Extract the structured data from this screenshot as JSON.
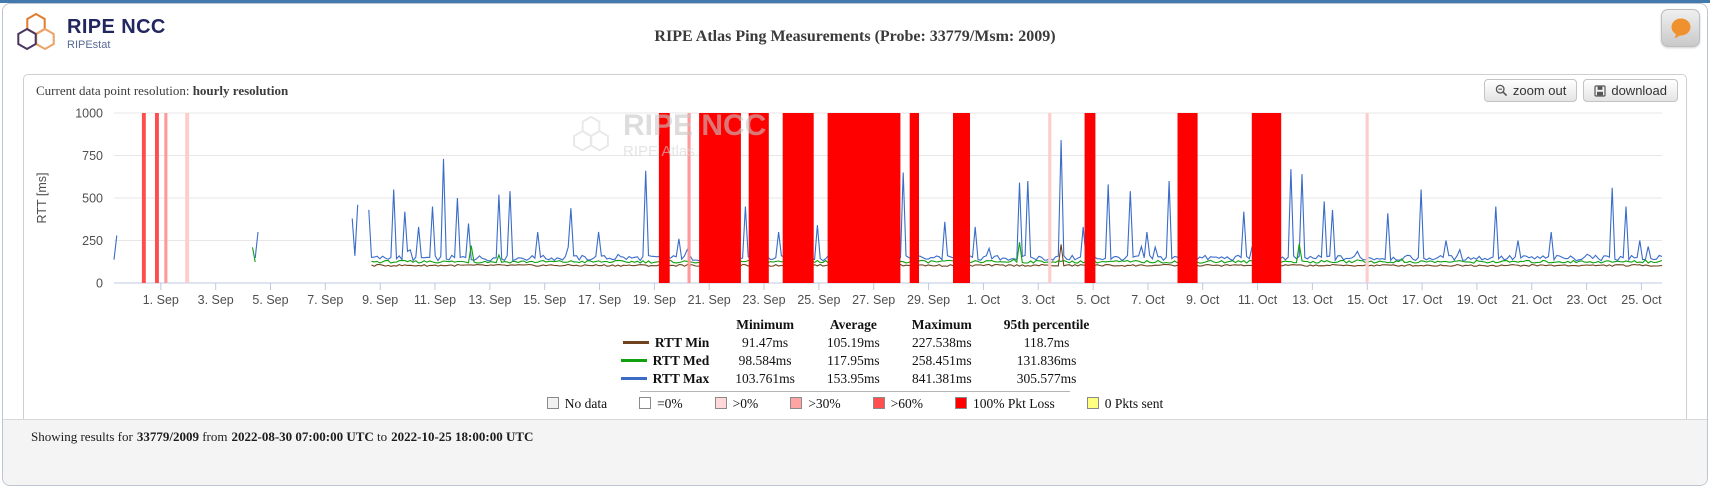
{
  "header": {
    "logo_title": "RIPE NCC",
    "logo_subtitle": "RIPEstat",
    "title": "RIPE Atlas Ping Measurements (Probe: 33779/Msm: 2009)"
  },
  "toolbar": {
    "resolution_label": "Current data point resolution:",
    "resolution_value": "hourly resolution",
    "zoom_out_label": "zoom out",
    "download_label": "download"
  },
  "chart_data": {
    "type": "line",
    "title": "RIPE Atlas Ping Measurements (Probe: 33779/Msm: 2009)",
    "ylabel": "RTT [ms]",
    "ylim": [
      0,
      1000
    ],
    "yticks": [
      0,
      250,
      500,
      750,
      1000
    ],
    "x_start": "2022-08-30 07:00:00 UTC",
    "x_end": "2022-10-25 18:00:00 UTC",
    "x_tick_labels": [
      "1. Sep",
      "3. Sep",
      "5. Sep",
      "7. Sep",
      "9. Sep",
      "11. Sep",
      "13. Sep",
      "15. Sep",
      "17. Sep",
      "19. Sep",
      "21. Sep",
      "23. Sep",
      "25. Sep",
      "27. Sep",
      "29. Sep",
      "1. Oct",
      "3. Oct",
      "5. Oct",
      "7. Oct",
      "9. Oct",
      "11. Oct",
      "13. Oct",
      "15. Oct",
      "17. Oct",
      "19. Oct",
      "21. Oct",
      "23. Oct",
      "25. Oct"
    ],
    "watermark_line1": "RIPE NCC",
    "watermark_line2": "RIPE Atlas",
    "sparse_until": 0.165,
    "series": [
      {
        "name": "RTT Max",
        "color": "#3a6cc8",
        "base": 131,
        "jitter": 32,
        "burst": [
          0.06,
          75
        ],
        "spikes": [
          [
            0.002,
            280
          ],
          [
            0.022,
            300
          ],
          [
            0.093,
            300
          ],
          [
            0.153,
            380
          ],
          [
            0.158,
            460
          ],
          [
            0.164,
            430
          ],
          [
            0.18,
            550
          ],
          [
            0.188,
            420
          ],
          [
            0.197,
            330
          ],
          [
            0.206,
            450
          ],
          [
            0.213,
            730
          ],
          [
            0.222,
            500
          ],
          [
            0.229,
            350
          ],
          [
            0.249,
            520
          ],
          [
            0.256,
            540
          ],
          [
            0.274,
            300
          ],
          [
            0.296,
            440
          ],
          [
            0.313,
            300
          ],
          [
            0.343,
            660
          ],
          [
            0.365,
            260
          ],
          [
            0.408,
            450
          ],
          [
            0.43,
            300
          ],
          [
            0.455,
            340
          ],
          [
            0.51,
            650
          ],
          [
            0.536,
            360
          ],
          [
            0.556,
            330
          ],
          [
            0.585,
            590
          ],
          [
            0.59,
            600
          ],
          [
            0.612,
            840
          ],
          [
            0.626,
            330
          ],
          [
            0.643,
            580
          ],
          [
            0.657,
            540
          ],
          [
            0.667,
            300
          ],
          [
            0.681,
            600
          ],
          [
            0.729,
            420
          ],
          [
            0.761,
            670
          ],
          [
            0.767,
            640
          ],
          [
            0.781,
            480
          ],
          [
            0.787,
            430
          ],
          [
            0.823,
            410
          ],
          [
            0.844,
            550
          ],
          [
            0.861,
            250
          ],
          [
            0.893,
            450
          ],
          [
            0.907,
            250
          ],
          [
            0.929,
            300
          ],
          [
            0.967,
            560
          ],
          [
            0.977,
            450
          ],
          [
            0.985,
            250
          ]
        ]
      },
      {
        "name": "RTT Med",
        "color": "#10a010",
        "base": 117,
        "jitter": 16,
        "burst": [
          0.03,
          35
        ],
        "spikes": [
          [
            0.09,
            210
          ],
          [
            0.23,
            220
          ],
          [
            0.585,
            240
          ],
          [
            0.765,
            230
          ]
        ]
      },
      {
        "name": "RTT Min",
        "color": "#70431f",
        "base": 98,
        "jitter": 11,
        "burst": null,
        "spikes": [
          [
            0.612,
            227
          ]
        ]
      }
    ],
    "band_colors": {
      "full": "#fe0000",
      "red60": "#ff4d4d",
      "red30": "#ff9999",
      "red0": "#ffcccc"
    },
    "loss_bands": [
      {
        "f0": 0.018,
        "f1": 0.0205,
        "type": "red60"
      },
      {
        "f0": 0.0265,
        "f1": 0.029,
        "type": "red60"
      },
      {
        "f0": 0.0325,
        "f1": 0.0345,
        "type": "red30"
      },
      {
        "f0": 0.046,
        "f1": 0.0485,
        "type": "red0"
      },
      {
        "f0": 0.352,
        "f1": 0.359,
        "type": "full"
      },
      {
        "f0": 0.3705,
        "f1": 0.3725,
        "type": "red30"
      },
      {
        "f0": 0.378,
        "f1": 0.405,
        "type": "full"
      },
      {
        "f0": 0.41,
        "f1": 0.423,
        "type": "full"
      },
      {
        "f0": 0.432,
        "f1": 0.452,
        "type": "full"
      },
      {
        "f0": 0.461,
        "f1": 0.508,
        "type": "full"
      },
      {
        "f0": 0.514,
        "f1": 0.52,
        "type": "full"
      },
      {
        "f0": 0.542,
        "f1": 0.553,
        "type": "full"
      },
      {
        "f0": 0.6035,
        "f1": 0.6055,
        "type": "red0"
      },
      {
        "f0": 0.627,
        "f1": 0.634,
        "type": "full"
      },
      {
        "f0": 0.687,
        "f1": 0.7,
        "type": "full"
      },
      {
        "f0": 0.735,
        "f1": 0.754,
        "type": "full"
      },
      {
        "f0": 0.8085,
        "f1": 0.8105,
        "type": "red0"
      }
    ],
    "stats_table": {
      "columns": [
        "Minimum",
        "Average",
        "Maximum",
        "95th percentile"
      ],
      "rows": [
        {
          "name": "RTT Min",
          "color": "#70431f",
          "values": [
            "91.47ms",
            "105.19ms",
            "227.538ms",
            "118.7ms"
          ]
        },
        {
          "name": "RTT Med",
          "color": "#10a010",
          "values": [
            "98.584ms",
            "117.95ms",
            "258.451ms",
            "131.836ms"
          ]
        },
        {
          "name": "RTT Max",
          "color": "#3a6cc8",
          "values": [
            "103.761ms",
            "153.95ms",
            "841.381ms",
            "305.577ms"
          ]
        }
      ]
    },
    "loss_legend": [
      {
        "label": "No data",
        "color": "#f2f2f2"
      },
      {
        "label": "=0%",
        "color": "#ffffff"
      },
      {
        "label": ">0%",
        "color": "#ffd9d9"
      },
      {
        "label": ">30%",
        "color": "#ffa3a3"
      },
      {
        "label": ">60%",
        "color": "#ff5050"
      },
      {
        "label": "100% Pkt Loss",
        "color": "#ff0000"
      },
      {
        "label": "0 Pkts sent",
        "color": "#ffff80"
      }
    ]
  },
  "footer": {
    "prefix": "Showing results for",
    "target": "33779/2009",
    "from_word": "from",
    "from_value": "2022-08-30 07:00:00 UTC",
    "to_word": "to",
    "to_value": "2022-10-25 18:00:00 UTC"
  },
  "colors": {
    "accent_orange": "#f0912f",
    "logo_navy": "#232760",
    "topline_blue": "#4479ad",
    "loss_full_red": "#fe0000"
  }
}
